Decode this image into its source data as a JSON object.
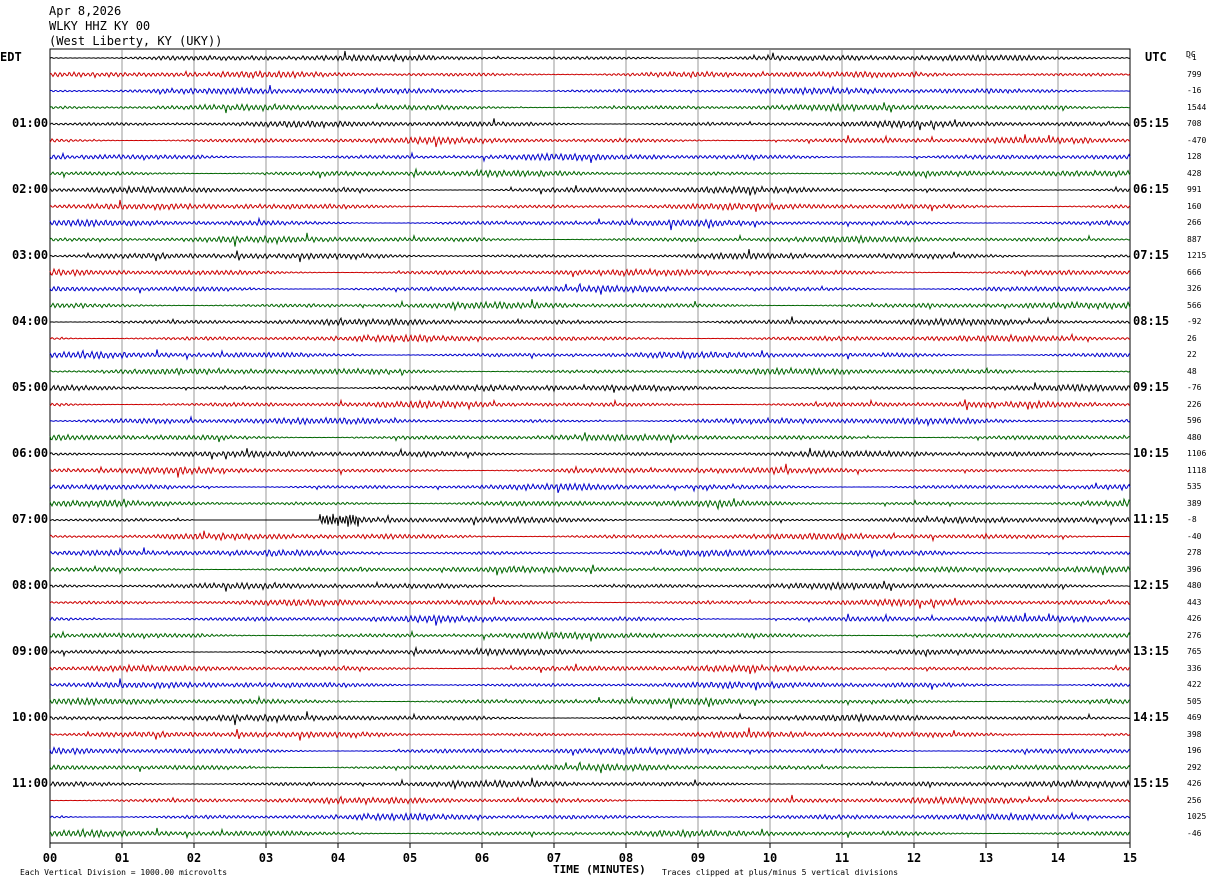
{
  "header": {
    "date": "Apr 8,2026",
    "station": "WLKY HHZ KY 00",
    "location": "(West Liberty, KY (UKY))"
  },
  "left_tz": "EDT",
  "right_tz": "UTC",
  "dc_header": "DC",
  "footer": {
    "scale": "Each Vertical Division = 1000.00 microvolts",
    "clip": "Traces clipped at plus/minus 5 vertical divisions"
  },
  "colors": {
    "black": "#000000",
    "red": "#cc0000",
    "blue": "#0000cc",
    "green": "#006600",
    "grid": "#808080"
  },
  "chart_data": {
    "type": "line",
    "title": "",
    "xlabel": "TIME (MINUTES)",
    "xlim": [
      0,
      15
    ],
    "x_ticks": [
      "00",
      "01",
      "02",
      "03",
      "04",
      "05",
      "06",
      "07",
      "08",
      "09",
      "10",
      "11",
      "12",
      "13",
      "14",
      "15"
    ],
    "rows_per_hour": 4,
    "trace_colors": [
      "black",
      "red",
      "blue",
      "green"
    ],
    "left_hour_labels": [
      "01:00",
      "02:00",
      "03:00",
      "04:00",
      "05:00",
      "06:00",
      "07:00",
      "08:00",
      "09:00",
      "10:00",
      "11:00"
    ],
    "right_hour_labels": [
      "05:15",
      "06:15",
      "07:15",
      "08:15",
      "09:15",
      "10:15",
      "11:15",
      "12:15",
      "13:15",
      "14:15",
      "15:15"
    ],
    "dc_offsets": [
      "-1",
      "799",
      "-16",
      "1544",
      "708",
      "-470",
      "128",
      "428",
      "991",
      "160",
      "266",
      "887",
      "1215",
      "666",
      "326",
      "566",
      "-92",
      "26",
      "22",
      "48",
      "-76",
      "226",
      "596",
      "480",
      "1106",
      "1118",
      "535",
      "389",
      "-8",
      "-40",
      "278",
      "396",
      "480",
      "443",
      "426",
      "276",
      "765",
      "336",
      "422",
      "505",
      "469",
      "398",
      "196",
      "292",
      "426",
      "256",
      "1025",
      "-46"
    ],
    "events": [
      {
        "row": 28,
        "start_min": 2.0,
        "end_min": 4.3,
        "description": "flat section then burst at ~4.2 min"
      }
    ]
  }
}
